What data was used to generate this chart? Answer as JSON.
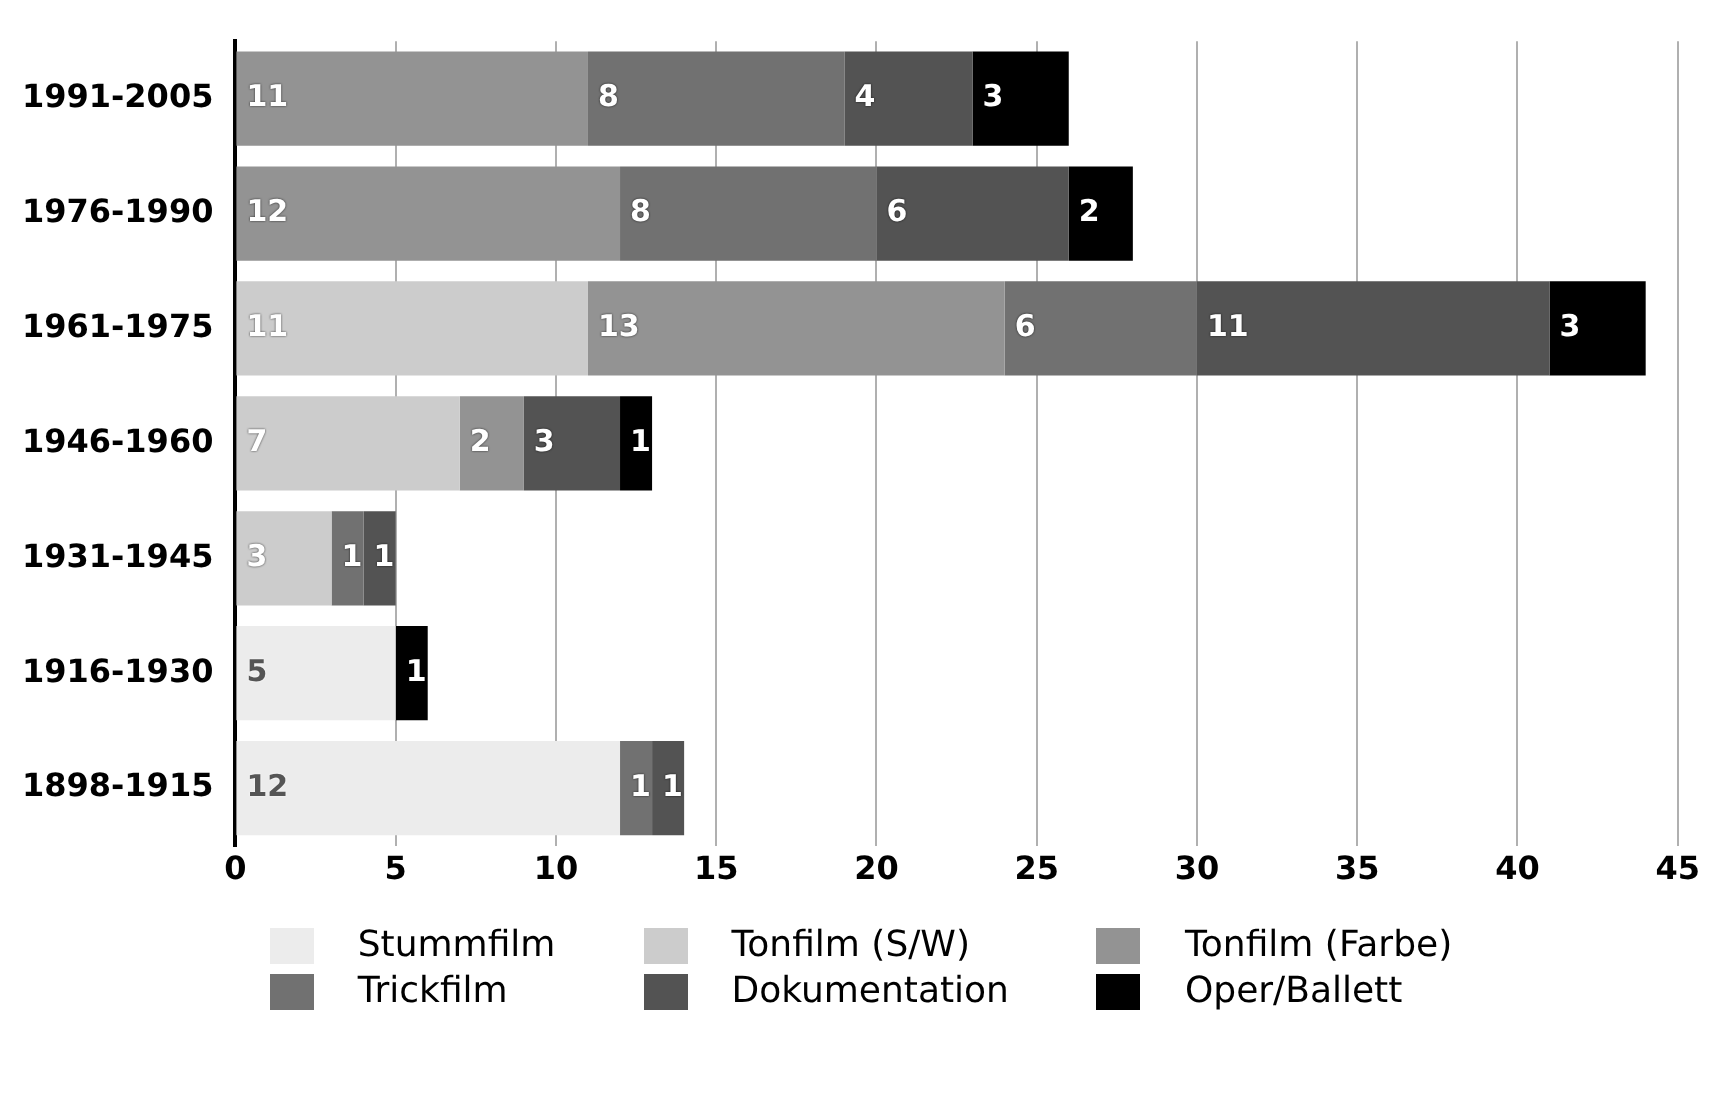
{
  "chart_data": {
    "type": "bar",
    "orientation": "horizontal",
    "stacked": true,
    "categories": [
      "1991-2005",
      "1976-1990",
      "1961-1975",
      "1946-1960",
      "1931-1945",
      "1916-1930",
      "1898-1915"
    ],
    "series": [
      {
        "name": "Stummfilm",
        "color": "#ececec",
        "values": [
          null,
          null,
          null,
          null,
          null,
          5,
          12
        ]
      },
      {
        "name": "Tonfilm (S/W)",
        "color": "#cccccc",
        "values": [
          null,
          null,
          11,
          7,
          3,
          null,
          null
        ]
      },
      {
        "name": "Tonfilm (Farbe)",
        "color": "#939393",
        "values": [
          11,
          12,
          13,
          2,
          null,
          null,
          null
        ]
      },
      {
        "name": "Trickfilm",
        "color": "#717171",
        "values": [
          8,
          8,
          6,
          null,
          1,
          null,
          1
        ]
      },
      {
        "name": "Dokumentation",
        "color": "#535353",
        "values": [
          4,
          6,
          11,
          3,
          1,
          null,
          1
        ]
      },
      {
        "name": "Oper/Ballett",
        "color": "#000000",
        "values": [
          3,
          2,
          3,
          1,
          null,
          1,
          null
        ]
      }
    ],
    "xlim": [
      0,
      45
    ],
    "xticks": [
      0,
      5,
      10,
      15,
      20,
      25,
      30,
      35,
      40,
      45
    ],
    "grid": "x",
    "legend": "bottom",
    "data_labels": true
  }
}
